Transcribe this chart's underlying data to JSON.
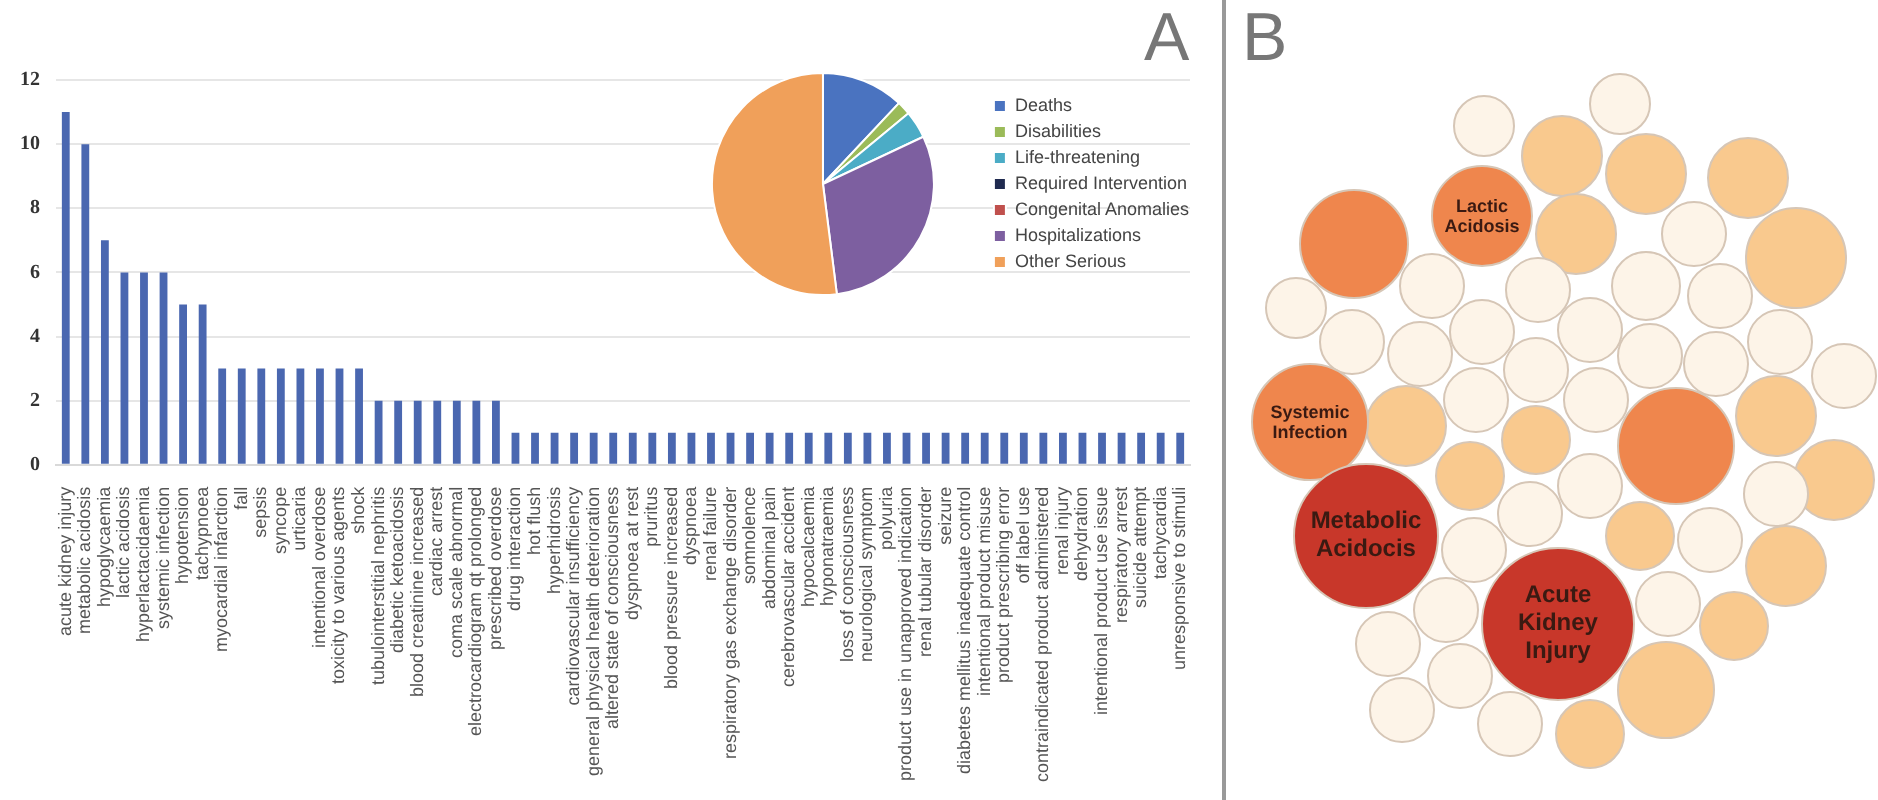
{
  "chart_data": [
    {
      "type": "bar",
      "title": "A",
      "categories": [
        "acute kidney injury",
        "metabolic acidosis",
        "hypoglycaemia",
        "lactic acidosis",
        "hyperlactacidaemia",
        "systemic infection",
        "hypotension",
        "tachypnoea",
        "myocardial infarction",
        "fall",
        "sepsis",
        "syncope",
        "urticaria",
        "intentional overdose",
        "toxicity to various agents",
        "shock",
        "tubulointerstitial nephritis",
        "diabetic ketoacidosis",
        "blood creatinine increased",
        "cardiac arrest",
        "coma scale abnormal",
        "electrocardiogram qt prolonged",
        "prescribed overdose",
        "drug interaction",
        "hot flush",
        "hyperhidrosis",
        "cardiovascular insufficiency",
        "general physical health deterioration",
        "altered state of consciousness",
        "dyspnoea at rest",
        "pruritus",
        "blood pressure increased",
        "dyspnoea",
        "renal failure",
        "respiratory gas exchange disorder",
        "somnolence",
        "abdominal pain",
        "cerebrovascular accident",
        "hypocalcaemia",
        "hyponatraemia",
        "loss of consciousness",
        "neurological symptom",
        "polyuria",
        "product use in unapproved indication",
        "renal tubular disorder",
        "seizure",
        "diabetes mellitus inadequate control",
        "intentional product misuse",
        "product prescribing error",
        "off label use",
        "contraindicated product administered",
        "renal injury",
        "dehydration",
        "intentional product use issue",
        "respiratory arrest",
        "suicide attempt",
        "tachycardia",
        "unresponsive to stimuli"
      ],
      "values": [
        11,
        10,
        7,
        6,
        6,
        6,
        5,
        5,
        3,
        3,
        3,
        3,
        3,
        3,
        3,
        3,
        2,
        2,
        2,
        2,
        2,
        2,
        2,
        1,
        1,
        1,
        1,
        1,
        1,
        1,
        1,
        1,
        1,
        1,
        1,
        1,
        1,
        1,
        1,
        1,
        1,
        1,
        1,
        1,
        1,
        1,
        1,
        1,
        1,
        1,
        1,
        1,
        1,
        1,
        1,
        1,
        1,
        1
      ],
      "color": "#4a67b0",
      "ylim": [
        0,
        12
      ],
      "yticks": [
        0,
        2,
        4,
        6,
        8,
        10,
        12
      ],
      "grid": "y",
      "legend": false
    },
    {
      "type": "pie",
      "categories": [
        "Deaths",
        "Disabilities",
        "Life-threatening",
        "Required Intervention",
        "Congenital Anomalies",
        "Hospitalizations",
        "Other Serious"
      ],
      "values": [
        12,
        2,
        4,
        0,
        0,
        30,
        52
      ],
      "colors": [
        "#4a73c0",
        "#9bbb59",
        "#4bacc6",
        "#1f2a4f",
        "#c0504d",
        "#7d5fa0",
        "#f0a05a"
      ],
      "legend": "right"
    },
    {
      "type": "other",
      "title": "B",
      "annotations": [
        "Lactic Acidosis",
        "Systemic Infection",
        "Metabolic Acidocis",
        "Acute Kidney Injury"
      ]
    }
  ]
}
